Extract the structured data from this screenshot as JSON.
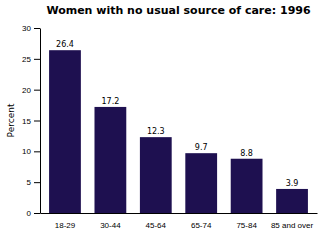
{
  "chart_data": {
    "type": "bar",
    "title": "Women with no usual source of care: 1996",
    "categories": [
      "18-29",
      "30-44",
      "45-64",
      "65-74",
      "75-84",
      "85 and over"
    ],
    "values": [
      26.4,
      17.2,
      12.3,
      9.7,
      8.8,
      3.9
    ],
    "color": "#1e1050",
    "ylabel": "Percent",
    "ylim": [
      0,
      30
    ],
    "yticks": [
      0,
      5,
      10,
      15,
      20,
      25,
      30
    ],
    "grid": false,
    "data_labels": true
  }
}
